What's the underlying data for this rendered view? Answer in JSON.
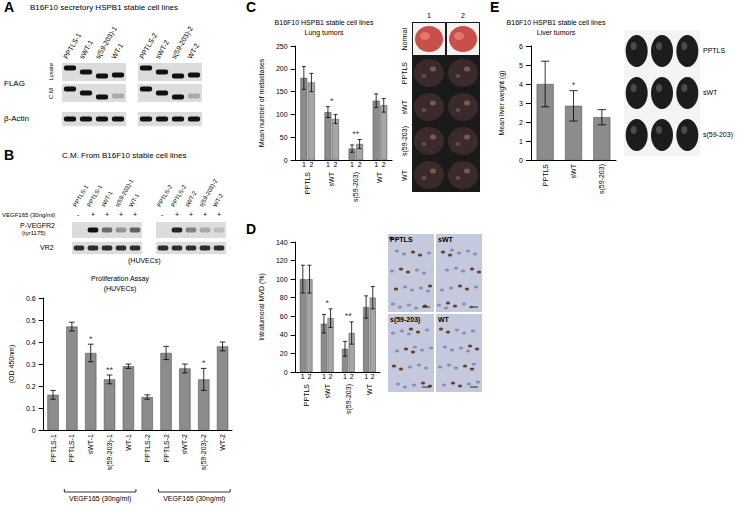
{
  "chart_data": [
    {
      "panel": "B",
      "type": "bar",
      "title": "Proliferation Assay",
      "subtitle": "(HUVECs)",
      "y_label": "(OD 450nm)",
      "categories": [
        "PPTLS-1",
        "PPTLS-1",
        "sWT-1",
        "s(59-203)-1",
        "WT-1",
        "PPTLS-2",
        "PPTLS-2",
        "sWT-2",
        "s(59-203)-2",
        "WT-2"
      ],
      "values": [
        0.16,
        0.47,
        0.35,
        0.23,
        0.29,
        0.15,
        0.35,
        0.28,
        0.23,
        0.38
      ],
      "errors": [
        0.02,
        0.02,
        0.04,
        0.02,
        0.01,
        0.01,
        0.03,
        0.02,
        0.05,
        0.02
      ],
      "annotations": [
        null,
        null,
        "*",
        "**",
        null,
        null,
        null,
        null,
        "*",
        null
      ],
      "groups": [
        {
          "label": "VEGF165 (30ng/ml)",
          "first": 1,
          "last": 4
        },
        {
          "label": "VEGF165 (30ng/ml)",
          "first": 6,
          "last": 9
        }
      ],
      "color": "#8c8c8c",
      "ylim": [
        0,
        0.6
      ],
      "yticks": [
        0,
        0.1,
        0.2,
        0.3,
        0.4,
        0.5,
        0.6
      ],
      "grid": false
    },
    {
      "panel": "C",
      "type": "bar",
      "title": "B16F10 HSPB1 stable cell lines",
      "subtitle": "Lung tumors",
      "y_label": "Mean number of metastases",
      "categories": [
        "PPTLS",
        "sWT",
        "s(59-203)",
        "WT"
      ],
      "series": [
        {
          "name": "1",
          "color": "#8c8c8c",
          "values": [
            180,
            105,
            25,
            130
          ],
          "errors": [
            25,
            12,
            8,
            15
          ]
        },
        {
          "name": "2",
          "color": "#a6a6a6",
          "values": [
            170,
            90,
            35,
            120
          ],
          "errors": [
            20,
            10,
            10,
            15
          ]
        }
      ],
      "annotations": [
        null,
        "*",
        "**",
        null
      ],
      "ylim": [
        0,
        250
      ],
      "yticks": [
        0,
        50,
        100,
        150,
        200,
        250
      ],
      "grid": false
    },
    {
      "panel": "D",
      "type": "bar",
      "y_label": "Intratumoral MVD (%)",
      "categories": [
        "PPTLS",
        "sWT",
        "s(59-203)",
        "WT"
      ],
      "series": [
        {
          "name": "1",
          "color": "#8c8c8c",
          "values": [
            100,
            52,
            25,
            70
          ],
          "errors": [
            15,
            10,
            8,
            12
          ]
        },
        {
          "name": "2",
          "color": "#a6a6a6",
          "values": [
            100,
            58,
            42,
            80
          ],
          "errors": [
            15,
            10,
            12,
            12
          ]
        }
      ],
      "annotations": [
        null,
        "*",
        "**",
        null
      ],
      "ylim": [
        0,
        140
      ],
      "yticks": [
        0,
        20,
        40,
        60,
        80,
        100,
        120,
        140
      ],
      "grid": false
    },
    {
      "panel": "E",
      "type": "bar",
      "title": "B16F10 HSPB1 stable cell lines",
      "subtitle": "Liver tumors",
      "y_label": "Mean liver weight (g)",
      "categories": [
        "PPTLS",
        "sWT",
        "s(59-203)"
      ],
      "values": [
        4.0,
        2.85,
        2.25
      ],
      "errors": [
        1.2,
        0.8,
        0.4
      ],
      "annotations": [
        null,
        "*",
        null
      ],
      "color": "#8c8c8c",
      "ylim": [
        0,
        6
      ],
      "yticks": [
        0,
        1,
        2,
        3,
        4,
        5,
        6
      ],
      "grid": false
    }
  ],
  "figure": {
    "panels": [
      "A",
      "B",
      "C",
      "D",
      "E"
    ],
    "blot_A": {
      "title": "B16F10 secretory HSPB1 stable cell lines",
      "lanes": [
        "PPTLS-1",
        "sWT-1",
        "s(59-203)-1",
        "WT-1",
        "PPTLS-2",
        "sWT-2",
        "s(59-203)-2",
        "WT-2"
      ],
      "rows": [
        "FLAG",
        "β-Actin"
      ],
      "sublabels": [
        "Lysate",
        "C.M"
      ]
    },
    "blot_B": {
      "title": "C.M. From B16F10 stable cell lines",
      "lanes": [
        "PPTLS-1",
        "PPTLS-1",
        "sWT-1",
        "s(59-203)-1",
        "WT-1",
        "PPTLS-2",
        "PPTLS-2",
        "sWT-2",
        "s(59-203)-2",
        "WT-2"
      ],
      "treatment_label": "VEGF165 (30ng/ml)",
      "treatment": [
        "-",
        "+",
        "+",
        "+",
        "+",
        "-",
        "+",
        "+",
        "+",
        "+"
      ],
      "rows": [
        "P-VEGFR2 (tyr1175)",
        "VR2"
      ],
      "caption": "(HUVECs)"
    },
    "photo_C": {
      "columns": [
        "1",
        "2"
      ],
      "rows": [
        "Normal",
        "PPTLS",
        "sWT",
        "s(59-203)",
        "WT"
      ]
    },
    "images_D": [
      "PPTLS",
      "sWT",
      "s(59-203)",
      "WT"
    ],
    "photo_E": {
      "rows": [
        "PPTLS",
        "sWT",
        "s(59-203)"
      ]
    }
  }
}
